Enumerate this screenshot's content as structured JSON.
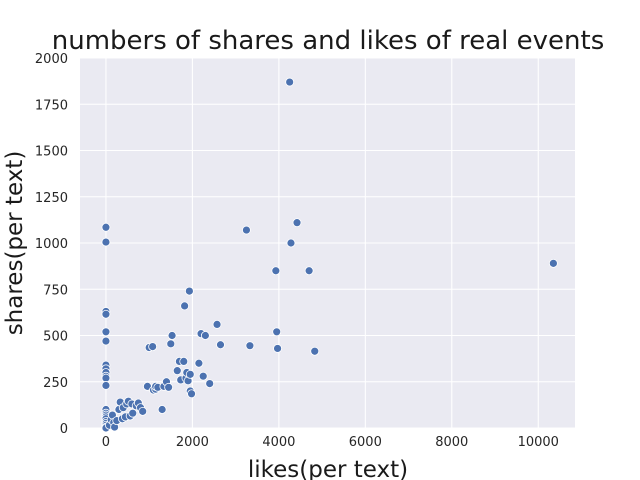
{
  "chart_data": {
    "type": "scatter",
    "title": "numbers of shares and likes of real events",
    "xlabel": "likes(per text)",
    "ylabel": "shares(per text)",
    "xlim": [
      -600,
      10850
    ],
    "ylim": [
      0,
      2000
    ],
    "xticks": [
      0,
      2000,
      4000,
      6000,
      8000,
      10000
    ],
    "yticks": [
      0,
      250,
      500,
      750,
      1000,
      1250,
      1500,
      1750,
      2000
    ],
    "grid": true,
    "background": "#eaeaf2",
    "grid_color": "#ffffff",
    "marker_color": "#4c72b0",
    "marker_edge": "#ffffff",
    "series": [
      {
        "points": [
          [
            0,
            1085
          ],
          [
            0,
            1005
          ],
          [
            0,
            630
          ],
          [
            0,
            615
          ],
          [
            0,
            520
          ],
          [
            0,
            470
          ],
          [
            0,
            340
          ],
          [
            0,
            320
          ],
          [
            0,
            300
          ],
          [
            0,
            280
          ],
          [
            0,
            270
          ],
          [
            0,
            230
          ],
          [
            0,
            100
          ],
          [
            0,
            80
          ],
          [
            0,
            70
          ],
          [
            0,
            60
          ],
          [
            0,
            50
          ],
          [
            0,
            35
          ],
          [
            0,
            25
          ],
          [
            0,
            15
          ],
          [
            0,
            5
          ],
          [
            0,
            0
          ],
          [
            80,
            15
          ],
          [
            120,
            45
          ],
          [
            150,
            70
          ],
          [
            180,
            30
          ],
          [
            200,
            5
          ],
          [
            250,
            40
          ],
          [
            300,
            100
          ],
          [
            330,
            140
          ],
          [
            380,
            50
          ],
          [
            400,
            110
          ],
          [
            450,
            60
          ],
          [
            480,
            130
          ],
          [
            520,
            145
          ],
          [
            560,
            65
          ],
          [
            600,
            130
          ],
          [
            620,
            80
          ],
          [
            700,
            120
          ],
          [
            750,
            135
          ],
          [
            800,
            110
          ],
          [
            850,
            90
          ],
          [
            960,
            225
          ],
          [
            1000,
            435
          ],
          [
            1080,
            440
          ],
          [
            1100,
            205
          ],
          [
            1150,
            210
          ],
          [
            1150,
            225
          ],
          [
            1200,
            220
          ],
          [
            1300,
            100
          ],
          [
            1340,
            225
          ],
          [
            1400,
            250
          ],
          [
            1450,
            220
          ],
          [
            1500,
            455
          ],
          [
            1530,
            500
          ],
          [
            1650,
            310
          ],
          [
            1700,
            360
          ],
          [
            1730,
            260
          ],
          [
            1800,
            360
          ],
          [
            1820,
            660
          ],
          [
            1850,
            270
          ],
          [
            1870,
            300
          ],
          [
            1900,
            255
          ],
          [
            1930,
            740
          ],
          [
            1950,
            290
          ],
          [
            1950,
            200
          ],
          [
            1980,
            185
          ],
          [
            2150,
            350
          ],
          [
            2200,
            510
          ],
          [
            2250,
            280
          ],
          [
            2300,
            500
          ],
          [
            2400,
            240
          ],
          [
            2570,
            560
          ],
          [
            2650,
            450
          ],
          [
            3250,
            1070
          ],
          [
            3330,
            445
          ],
          [
            3930,
            850
          ],
          [
            3950,
            520
          ],
          [
            3970,
            430
          ],
          [
            4250,
            1870
          ],
          [
            4280,
            1000
          ],
          [
            4420,
            1110
          ],
          [
            4700,
            850
          ],
          [
            4830,
            415
          ],
          [
            10350,
            890
          ]
        ]
      }
    ]
  }
}
